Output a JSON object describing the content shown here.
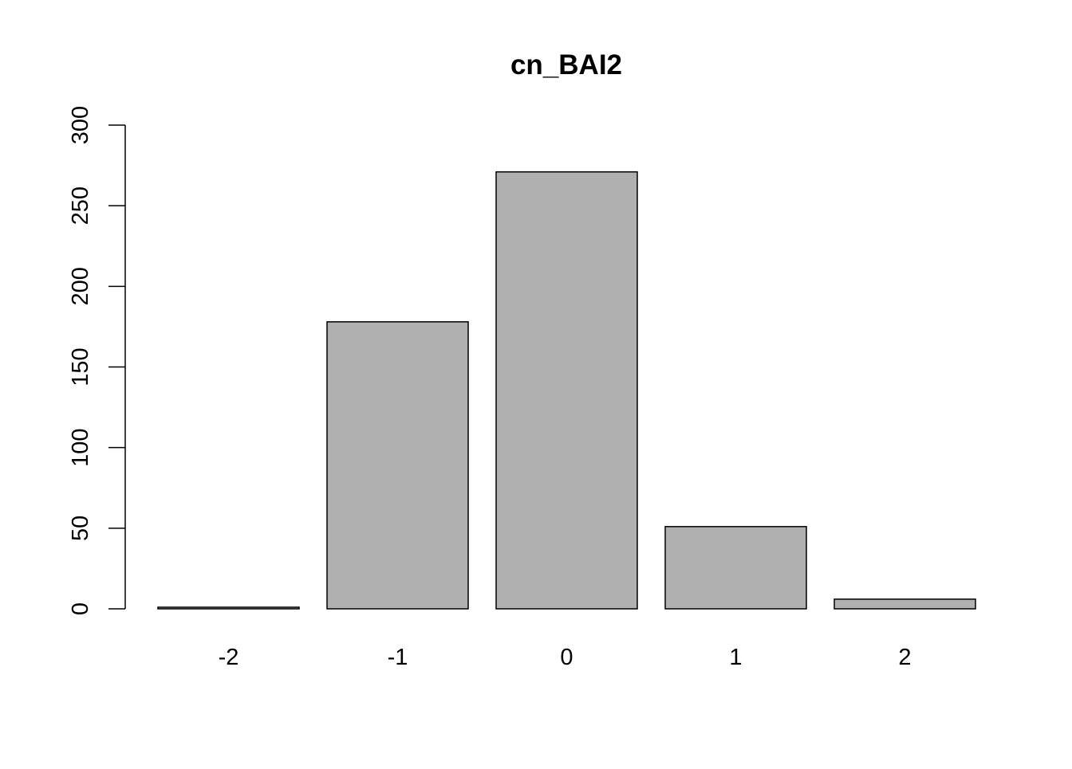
{
  "chart_data": {
    "type": "bar",
    "title": "cn_BAI2",
    "xlabel": "",
    "ylabel": "",
    "categories": [
      "-2",
      "-1",
      "0",
      "1",
      "2"
    ],
    "values": [
      1,
      178,
      271,
      51,
      6
    ],
    "ylim": [
      0,
      300
    ],
    "yticks": [
      0,
      50,
      100,
      150,
      200,
      250,
      300
    ],
    "grid": false,
    "bar_fill": "#b0b0b0",
    "bar_stroke": "#000000"
  }
}
